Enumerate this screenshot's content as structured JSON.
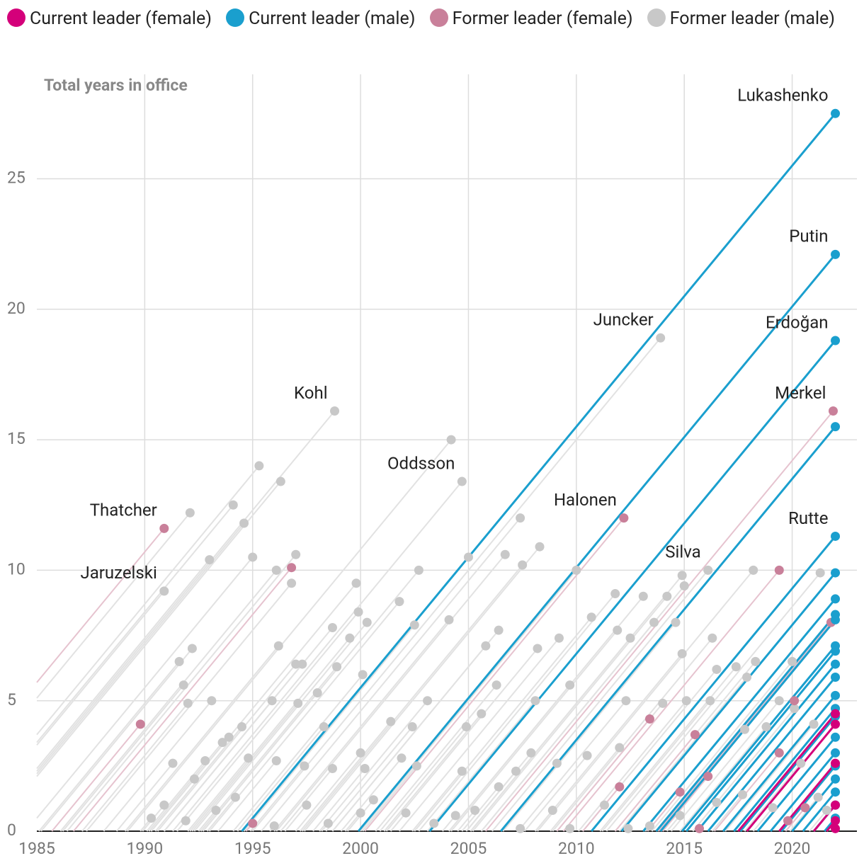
{
  "chart_data": {
    "type": "scatter",
    "title": "Total years in office",
    "xlim": [
      1985,
      2023
    ],
    "ylim": [
      0,
      29
    ],
    "xticks": [
      1985,
      1990,
      1995,
      2000,
      2005,
      2010,
      2015,
      2020
    ],
    "yticks": [
      0,
      5,
      10,
      15,
      20,
      25
    ],
    "grid": true,
    "series": [
      {
        "name": "Current leader (female)",
        "color": "#d4007a",
        "line_color": "#d4007a",
        "x": [
          2022,
          2022,
          2022,
          2022,
          2022,
          2022
        ],
        "values": [
          4.5,
          4.1,
          2.6,
          1.0,
          0.4,
          0.1
        ],
        "labels": [
          null,
          null,
          null,
          null,
          null,
          null
        ]
      },
      {
        "name": "Current leader (male)",
        "color": "#1a9fce",
        "line_color": "#1a9fce",
        "x": [
          2022,
          2022,
          2022,
          2022,
          2022,
          2022,
          2022,
          2022,
          2022,
          2022,
          2022,
          2022,
          2022,
          2022,
          2022,
          2022,
          2022,
          2022,
          2022,
          2022,
          2022,
          2022,
          2022
        ],
        "values": [
          27.5,
          22.1,
          18.8,
          15.5,
          11.3,
          9.9,
          8.9,
          8.3,
          8.1,
          7.1,
          6.9,
          6.4,
          5.9,
          5.2,
          4.7,
          4.4,
          3.6,
          3.0,
          2.5,
          2.0,
          1.5,
          1.0,
          0.5
        ],
        "labels": [
          "Lukashenko",
          "Putin",
          "Erdoğan",
          null,
          "Rutte",
          null,
          null,
          null,
          null,
          null,
          null,
          null,
          null,
          null,
          null,
          null,
          null,
          null,
          null,
          null,
          null,
          null,
          null
        ]
      },
      {
        "name": "Former leader (female)",
        "color": "#c9809a",
        "line_color": "#e6c3cf",
        "x": [
          1990.9,
          1989.8,
          1996.8,
          2012.2,
          2021.9,
          2019.4,
          2021.8,
          2013.4,
          2015.5,
          2016.1,
          2019.4,
          2020.1,
          2012.0,
          2014.8,
          2015.7,
          1995.0,
          2019.8,
          2020.6
        ],
        "values": [
          11.6,
          4.1,
          10.1,
          12.0,
          16.1,
          10.0,
          8.0,
          4.3,
          3.7,
          2.1,
          3.0,
          5.0,
          1.7,
          1.5,
          0.1,
          0.3,
          0.4,
          0.9
        ],
        "labels": [
          "Thatcher",
          null,
          null,
          "Halonen",
          "Merkel",
          null,
          null,
          null,
          null,
          null,
          null,
          null,
          null,
          null,
          null,
          null,
          null,
          null
        ]
      },
      {
        "name": "Former leader (male)",
        "color": "#c8c8c8",
        "line_color": "#e2e2e2",
        "x": [
          1990.9,
          1998.8,
          2004.7,
          2013.9,
          2016.1,
          1995.3,
          1996.3,
          1994.1,
          1992.1,
          1994.6,
          1993.0,
          1995.0,
          1996.1,
          1997.0,
          1996.8,
          2004.2,
          2002.7,
          2005.0,
          2007.4,
          2008.3,
          2010.0,
          2007.5,
          2006.7,
          1999.8,
          1999.9,
          2000.3,
          1998.7,
          2001.8,
          2002.5,
          2004.1,
          1999.5,
          1998.9,
          1997.0,
          1997.3,
          1996.2,
          1992.2,
          1991.6,
          1991.8,
          1992.0,
          1993.1,
          1995.9,
          1998.0,
          1997.1,
          2000.1,
          2003.1,
          1998.3,
          1994.5,
          2001.4,
          2002.4,
          2004.9,
          2005.6,
          2006.3,
          2006.4,
          2005.8,
          2008.2,
          2008.1,
          2009.2,
          2009.7,
          2010.7,
          2011.8,
          2013.1,
          2014.2,
          2014.9,
          2013.6,
          2011.9,
          2012.5,
          2014.6,
          2014.9,
          2015.0,
          2016.3,
          2018.2,
          2021.3,
          2020.0,
          2018.3,
          2017.4,
          2016.5,
          2017.9,
          2019.4,
          2016.2,
          2015.1,
          2012.3,
          2014.0,
          2020.1,
          2018.8,
          2017.8,
          2021.0,
          1991.3,
          1992.3,
          1992.8,
          1993.6,
          1993.9,
          1994.8,
          1996.1,
          1997.4,
          1998.7,
          2000.0,
          2000.2,
          2001.9,
          2002.6,
          2004.7,
          2007.2,
          2007.9,
          2009.1,
          2010.5,
          2012.0,
          1990.9,
          1990.3,
          1991.9,
          1993.3,
          1994.2,
          1996.0,
          1997.5,
          1998.5,
          2000.0,
          2000.6,
          2002.1,
          2003.4,
          2004.4,
          2005.3,
          2006.4,
          2007.4,
          2008.9,
          2009.7,
          2011.3,
          2012.4,
          2013.4,
          2014.8,
          2016.5,
          2017.7,
          2019.1,
          2020.4,
          2021.2,
          2021.6
        ],
        "values": [
          9.2,
          16.1,
          13.4,
          18.9,
          10.0,
          14.0,
          13.4,
          12.5,
          12.2,
          11.8,
          10.4,
          10.5,
          10.0,
          10.6,
          9.5,
          15.0,
          10.0,
          10.5,
          12.0,
          10.9,
          10.0,
          10.2,
          10.6,
          9.5,
          8.4,
          8.0,
          7.8,
          8.8,
          7.9,
          8.1,
          7.4,
          6.3,
          6.4,
          6.4,
          7.1,
          7.0,
          6.5,
          5.6,
          4.9,
          5.0,
          5.0,
          5.3,
          4.9,
          6.0,
          5.0,
          4.0,
          4.0,
          4.2,
          4.0,
          4.0,
          4.5,
          5.6,
          7.7,
          7.1,
          7.0,
          5.0,
          7.4,
          5.6,
          8.2,
          9.1,
          9.0,
          9.0,
          9.8,
          8.0,
          7.7,
          7.4,
          8.0,
          6.8,
          9.4,
          7.4,
          10.0,
          9.9,
          6.5,
          6.5,
          6.3,
          6.2,
          5.9,
          5.0,
          5.0,
          5.0,
          5.0,
          4.9,
          4.7,
          4.0,
          3.9,
          4.1,
          2.6,
          2.0,
          2.7,
          3.4,
          3.6,
          2.8,
          2.7,
          2.5,
          2.4,
          3.0,
          2.4,
          2.8,
          2.5,
          2.3,
          2.3,
          3.0,
          2.6,
          2.9,
          3.2,
          1.0,
          0.5,
          0.4,
          0.8,
          1.3,
          0.2,
          1.0,
          0.3,
          0.7,
          1.2,
          0.7,
          0.3,
          0.6,
          0.8,
          1.7,
          0.1,
          0.8,
          0.1,
          1.0,
          0.1,
          0.2,
          0.6,
          1.1,
          1.4,
          0.9,
          2.6,
          1.3,
          0.8
        ],
        "labels": [
          "Jaruzelski",
          "Kohl",
          "Oddsson",
          "Juncker",
          "Silva",
          null,
          null,
          null,
          null,
          null,
          null,
          null,
          null,
          null,
          null,
          null,
          null,
          null,
          null,
          null,
          null,
          null,
          null,
          null,
          null,
          null,
          null,
          null,
          null,
          null,
          null,
          null,
          null,
          null,
          null,
          null,
          null,
          null,
          null,
          null,
          null,
          null,
          null,
          null,
          null,
          null,
          null,
          null,
          null,
          null,
          null,
          null,
          null,
          null,
          null,
          null,
          null,
          null,
          null,
          null,
          null,
          null,
          null,
          null,
          null,
          null,
          null,
          null,
          null,
          null,
          null,
          null,
          null,
          null,
          null,
          null,
          null,
          null,
          null,
          null,
          null,
          null,
          null,
          null,
          null,
          null,
          null,
          null,
          null,
          null,
          null,
          null,
          null,
          null,
          null,
          null,
          null,
          null,
          null,
          null,
          null,
          null,
          null,
          null,
          null,
          null,
          null,
          null,
          null,
          null,
          null,
          null,
          null,
          null,
          null,
          null,
          null,
          null,
          null,
          null,
          null,
          null,
          null,
          null,
          null,
          null,
          null,
          null,
          null,
          null,
          null,
          null,
          null
        ]
      }
    ]
  }
}
